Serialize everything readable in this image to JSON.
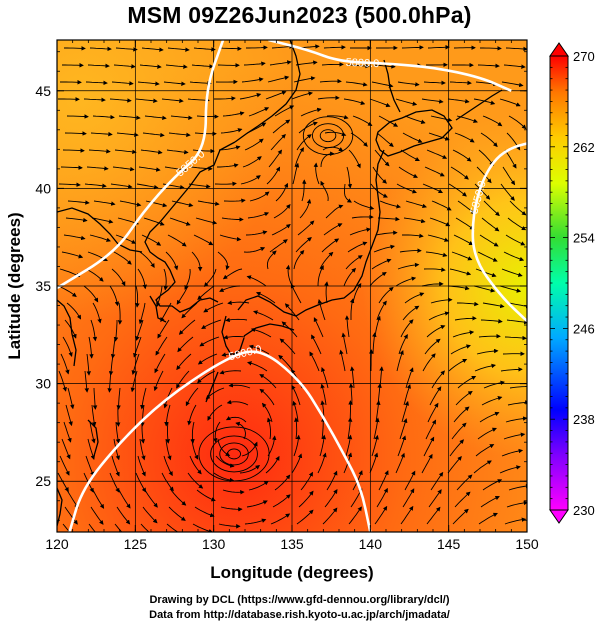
{
  "title": "MSM 09Z26Jun2023 (500.0hPa)",
  "chart_data": {
    "type": "map",
    "xlabel": "Longitude (degrees)",
    "ylabel": "Latitude  (degrees)",
    "xlim": [
      120,
      150
    ],
    "ylim": [
      22.4,
      47.6
    ],
    "x_ticks": [
      "120",
      "125",
      "130",
      "135",
      "140",
      "145",
      "150"
    ],
    "y_ticks": [
      "25",
      "30",
      "35",
      "40",
      "45"
    ],
    "colorbar": {
      "min": 230,
      "max": 270,
      "labels": [
        "270",
        "262",
        "254",
        "246",
        "238",
        "230"
      ],
      "colors": [
        "#ff00ff",
        "#0000ff",
        "#00aaff",
        "#00ffaa",
        "#33dd33",
        "#ddff00",
        "#ffcc00",
        "#ff7700",
        "#ff0000"
      ]
    },
    "contours": [
      {
        "label": "5800.0",
        "points": [
          [
            133.5,
            47.6
          ],
          [
            136,
            47.1
          ],
          [
            138,
            46.5
          ],
          [
            141,
            46.4
          ],
          [
            144,
            46.2
          ],
          [
            147,
            45.7
          ],
          [
            149,
            45.0
          ]
        ]
      },
      {
        "label": "5850.0",
        "points": [
          [
            151,
            42.5
          ],
          [
            148.5,
            42.0
          ],
          [
            147.2,
            40.6
          ],
          [
            146.5,
            38.5
          ],
          [
            146.6,
            36.4
          ],
          [
            148.3,
            34.5
          ],
          [
            150,
            33.2
          ]
        ]
      },
      {
        "label": "5850.0",
        "points": [
          [
            130.6,
            47.6
          ],
          [
            129.5,
            45.1
          ],
          [
            129.5,
            42.0
          ],
          [
            127.5,
            40.6
          ],
          [
            125.5,
            38.8
          ],
          [
            123.7,
            36.7
          ],
          [
            120,
            34.9
          ]
        ]
      },
      {
        "label": "5900.0",
        "points": [
          [
            120.8,
            22.4
          ],
          [
            121.6,
            24.6
          ],
          [
            124.0,
            27.0
          ],
          [
            127.0,
            29.3
          ],
          [
            131.0,
            31.4
          ],
          [
            133.0,
            31.8
          ],
          [
            135.5,
            30.2
          ],
          [
            137.0,
            28.3
          ],
          [
            138.3,
            26.4
          ],
          [
            139.4,
            24.7
          ],
          [
            140.0,
            22.4
          ]
        ]
      }
    ],
    "lows": [
      {
        "lon": 137.3,
        "lat": 42.7
      },
      {
        "lon": 131.3,
        "lat": 26.4
      }
    ]
  },
  "credits": [
    "Drawing by DCL (https://www.gfd-dennou.org/library/dcl/)",
    "Data from http://database.rish.kyoto-u.ac.jp/arch/jmadata/"
  ]
}
